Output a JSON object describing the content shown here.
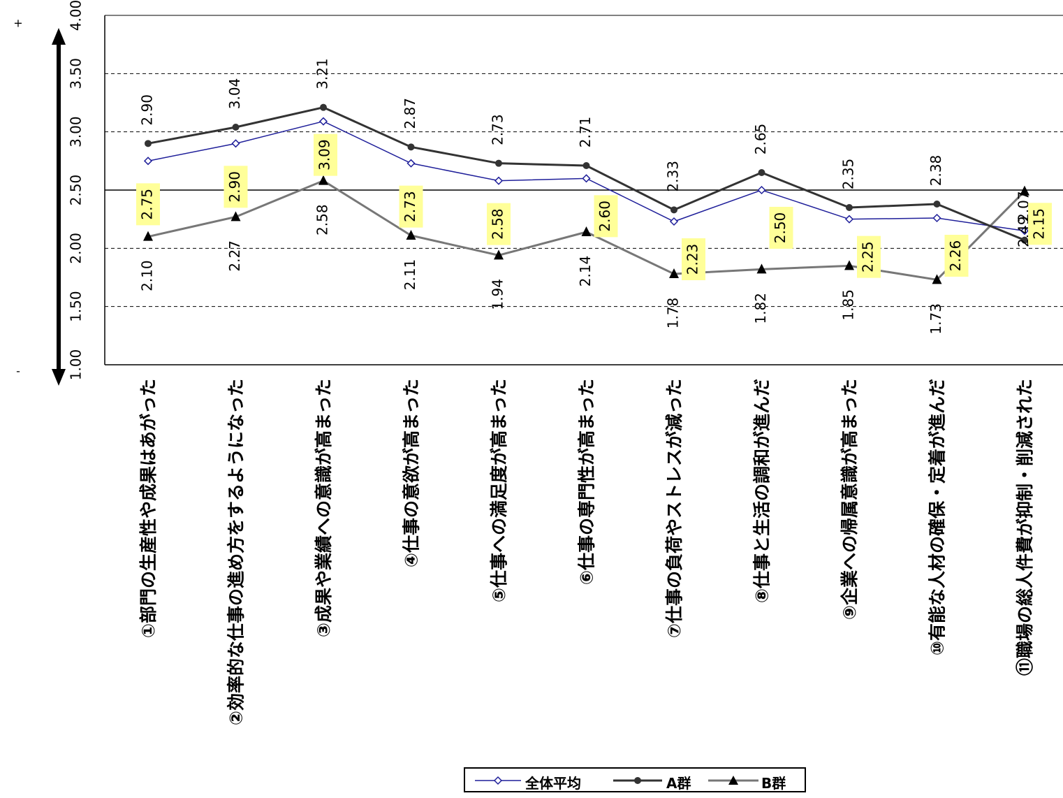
{
  "chart_data": {
    "type": "line",
    "categories": [
      "①部門の生産性や成果はあがった",
      "②効率的な仕事の進め方をするようになった",
      "③成果や業績への意識が高まった",
      "④仕事の意欲が高まった",
      "⑤仕事への満足度が高まった",
      "⑥仕事の専門性が高まった",
      "⑦仕事の負荷やストレスが減った",
      "⑧仕事と生活の調和が進んだ",
      "⑨企業への帰属意識が高まった",
      "⑩有能な人材の確保・定着が進んだ",
      "⑪職場の総人件費が抑制・削減された"
    ],
    "series": [
      {
        "name": "全体平均",
        "values": [
          2.75,
          2.9,
          3.09,
          2.73,
          2.58,
          2.6,
          2.23,
          2.5,
          2.25,
          2.26,
          2.15
        ],
        "color": "#1f1f9a",
        "marker": "diamond-open"
      },
      {
        "name": "A群",
        "values": [
          2.9,
          3.04,
          3.21,
          2.87,
          2.73,
          2.71,
          2.33,
          2.65,
          2.35,
          2.38,
          2.07
        ],
        "color": "#333333",
        "marker": "circle-filled"
      },
      {
        "name": "B群",
        "values": [
          2.1,
          2.27,
          2.58,
          2.11,
          1.94,
          2.14,
          1.78,
          1.82,
          1.85,
          1.73,
          2.49
        ],
        "color": "#777777",
        "marker": "triangle-filled"
      }
    ],
    "ylim": [
      1.0,
      4.0
    ],
    "yticks": [
      "1.00",
      "1.50",
      "2.00",
      "2.50",
      "3.00",
      "3.50",
      "4.00"
    ],
    "grid": "dashed at 1.50, 2.00, 3.00, 3.50; solid at 2.50",
    "orientation": "rotated 90° (labels read vertically)",
    "arrow_plus_label": "+",
    "arrow_minus_label": "-",
    "legend_position": "bottom",
    "highlight_color": "#ffff99"
  }
}
